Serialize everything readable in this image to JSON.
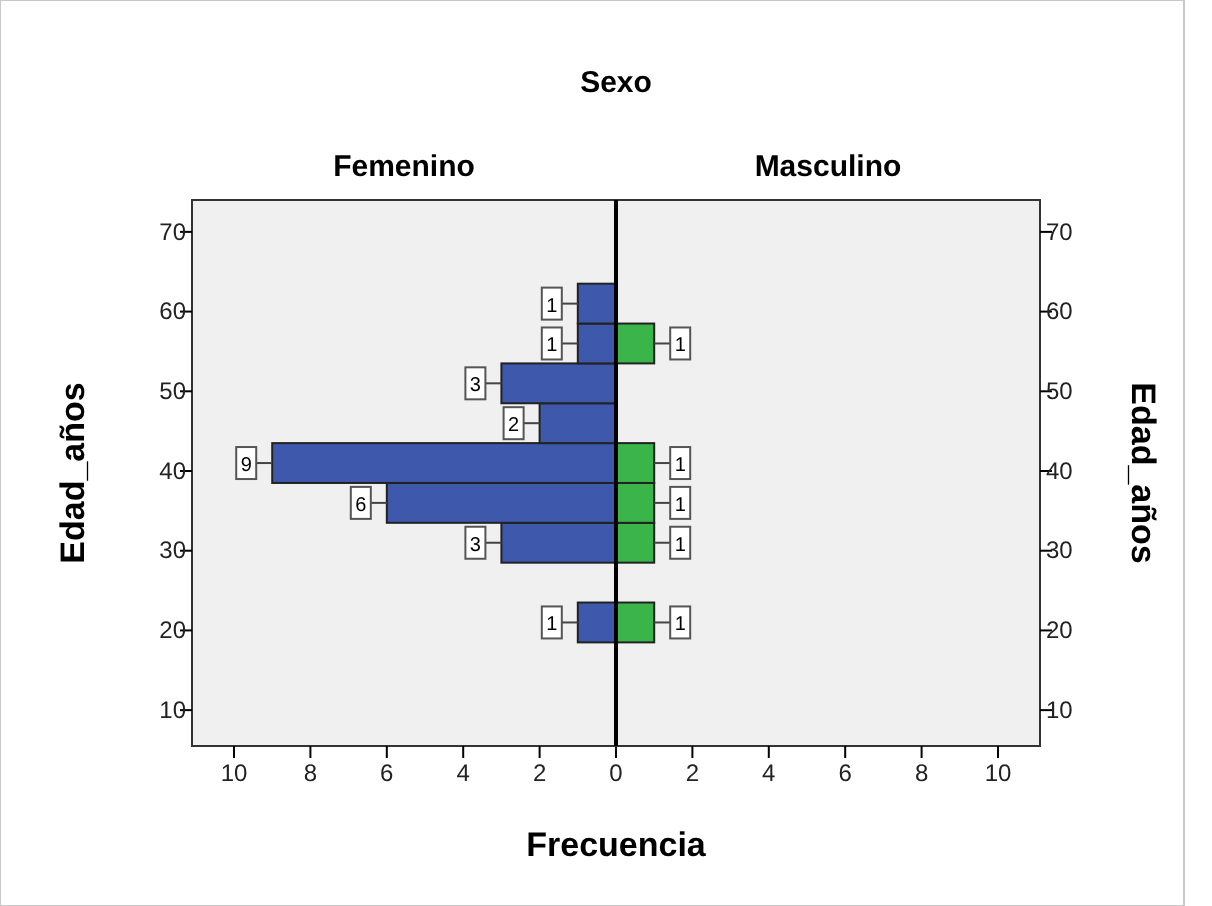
{
  "chart_data": [
    {
      "type": "histogram",
      "orientation": "horizontal",
      "title": "Femenino",
      "annotations": [
        "Sexo"
      ],
      "xlabel": "Frecuencia",
      "ylabel": "Edad_años",
      "bins": [
        18.5,
        23.5,
        28.5,
        33.5,
        38.5,
        43.5,
        48.5,
        53.5,
        58.5,
        63.5
      ],
      "values": [
        1,
        0,
        3,
        6,
        9,
        2,
        3,
        1,
        1
      ],
      "color": "#3e58ac",
      "value_labels": [
        "1",
        null,
        "3",
        "6",
        "9",
        "2",
        "3",
        "1",
        "1"
      ],
      "xlim": [
        11.1,
        0
      ],
      "xticks": [
        10,
        8,
        6,
        4,
        2,
        0
      ],
      "ylim": [
        5.5,
        74
      ],
      "yticks": [
        10,
        20,
        30,
        40,
        50,
        60,
        70
      ]
    },
    {
      "type": "histogram",
      "orientation": "horizontal",
      "title": "Masculino",
      "ylabel": "Edad_años",
      "bins": [
        18.5,
        23.5,
        28.5,
        33.5,
        38.5,
        43.5,
        48.5,
        53.5,
        58.5,
        63.5
      ],
      "values": [
        1,
        0,
        1,
        1,
        1,
        0,
        0,
        1,
        0
      ],
      "color": "#3bb54a",
      "value_labels": [
        "1",
        null,
        "1",
        "1",
        "1",
        null,
        null,
        "1",
        null
      ],
      "xlim": [
        0,
        11.1
      ],
      "xticks": [
        2,
        4,
        6,
        8,
        10
      ],
      "ylim": [
        5.5,
        74
      ],
      "yticks": [
        10,
        20,
        30,
        40,
        50,
        60,
        70
      ]
    }
  ]
}
